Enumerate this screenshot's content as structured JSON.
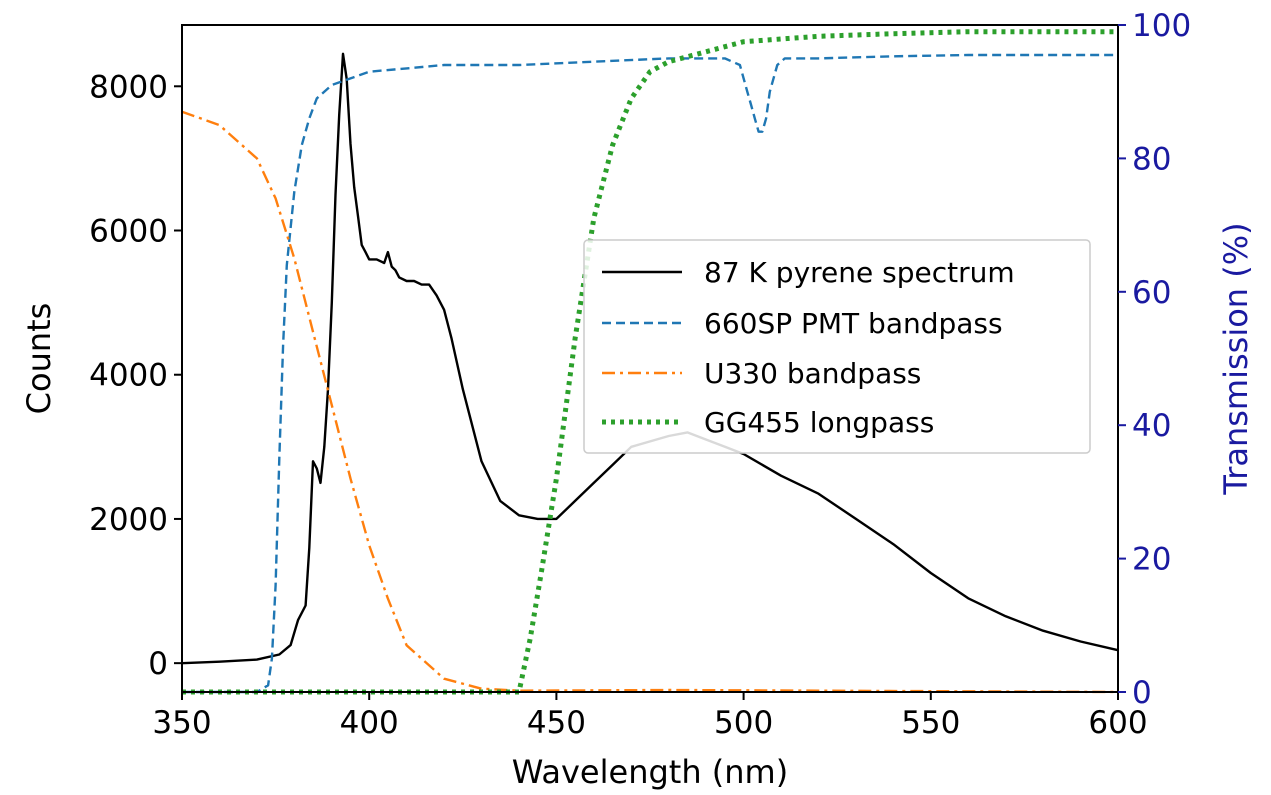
{
  "chart_data": {
    "type": "line",
    "xlabel": "Wavelength (nm)",
    "ylabel": "Counts",
    "y2label": "Transmission (%)",
    "xlim": [
      350,
      600
    ],
    "ylim": [
      -400,
      8850
    ],
    "y2lim": [
      0,
      100
    ],
    "xticks": [
      350,
      400,
      450,
      500,
      550,
      600
    ],
    "yticks": [
      0,
      2000,
      4000,
      6000,
      8000
    ],
    "y2ticks": [
      0,
      20,
      40,
      60,
      80,
      100
    ],
    "grid": false,
    "legend_position": "center-right",
    "colors": {
      "pyrene": "#000000",
      "pmt": "#1f77b4",
      "u330": "#ff7f0e",
      "gg455": "#2ca02c",
      "right_axis": "#1a1aa0"
    },
    "series": [
      {
        "name": "87 K pyrene spectrum",
        "axis": "left",
        "style": "solid",
        "x": [
          350,
          360,
          370,
          376,
          379,
          381,
          383,
          384,
          385,
          386,
          387,
          388,
          389,
          390,
          391,
          392,
          393,
          394,
          395,
          396,
          397,
          398,
          399,
          400,
          402,
          404,
          405,
          406,
          407,
          408,
          410,
          412,
          414,
          416,
          418,
          420,
          422,
          425,
          430,
          435,
          440,
          445,
          450,
          455,
          460,
          465,
          470,
          480,
          485,
          490,
          495,
          500,
          510,
          520,
          530,
          540,
          550,
          560,
          570,
          580,
          590,
          600
        ],
        "y": [
          0,
          20,
          50,
          120,
          250,
          600,
          800,
          1600,
          2800,
          2700,
          2500,
          3000,
          3800,
          5000,
          6500,
          7600,
          8450,
          8100,
          7200,
          6600,
          6200,
          5800,
          5700,
          5600,
          5600,
          5550,
          5700,
          5500,
          5450,
          5350,
          5300,
          5300,
          5250,
          5250,
          5100,
          4900,
          4500,
          3800,
          2800,
          2250,
          2050,
          2000,
          2000,
          2250,
          2500,
          2750,
          3000,
          3150,
          3200,
          3100,
          3000,
          2900,
          2600,
          2350,
          2000,
          1650,
          1250,
          900,
          650,
          450,
          300,
          180
        ]
      },
      {
        "name": "660SP PMT bandpass",
        "axis": "right",
        "style": "dashed",
        "x": [
          350,
          370,
          373,
          374,
          375,
          376,
          377,
          378,
          380,
          382,
          384,
          386,
          390,
          395,
          400,
          410,
          420,
          440,
          460,
          480,
          495,
          499,
          501,
          502,
          503,
          504,
          505,
          506,
          507,
          509,
          511,
          520,
          540,
          560,
          600
        ],
        "y": [
          0,
          0,
          1,
          5,
          16,
          35,
          52,
          64,
          75,
          82,
          86,
          89,
          91,
          92,
          93,
          93.5,
          94,
          94,
          94.5,
          95,
          95,
          94,
          90,
          88,
          86,
          84,
          84,
          86,
          90,
          94,
          95,
          95,
          95.3,
          95.5,
          95.5
        ]
      },
      {
        "name": "U330 bandpass",
        "axis": "right",
        "style": "dashdot",
        "x": [
          350,
          360,
          370,
          375,
          380,
          385,
          390,
          395,
          400,
          405,
          410,
          420,
          430,
          440,
          480,
          600
        ],
        "y": [
          87,
          85,
          80,
          74,
          65,
          54,
          43,
          32,
          22,
          14,
          7,
          2,
          0.5,
          0.2,
          0.3,
          0
        ]
      },
      {
        "name": "GG455 longpass",
        "axis": "right",
        "style": "dotted",
        "x": [
          350,
          440,
          443,
          446,
          450,
          455,
          460,
          465,
          470,
          475,
          480,
          490,
          500,
          520,
          540,
          560,
          580,
          600
        ],
        "y": [
          0,
          0,
          8,
          18,
          32,
          53,
          71,
          82,
          89,
          93,
          94.5,
          96,
          97.5,
          98.3,
          98.7,
          99,
          99,
          99
        ]
      }
    ]
  }
}
